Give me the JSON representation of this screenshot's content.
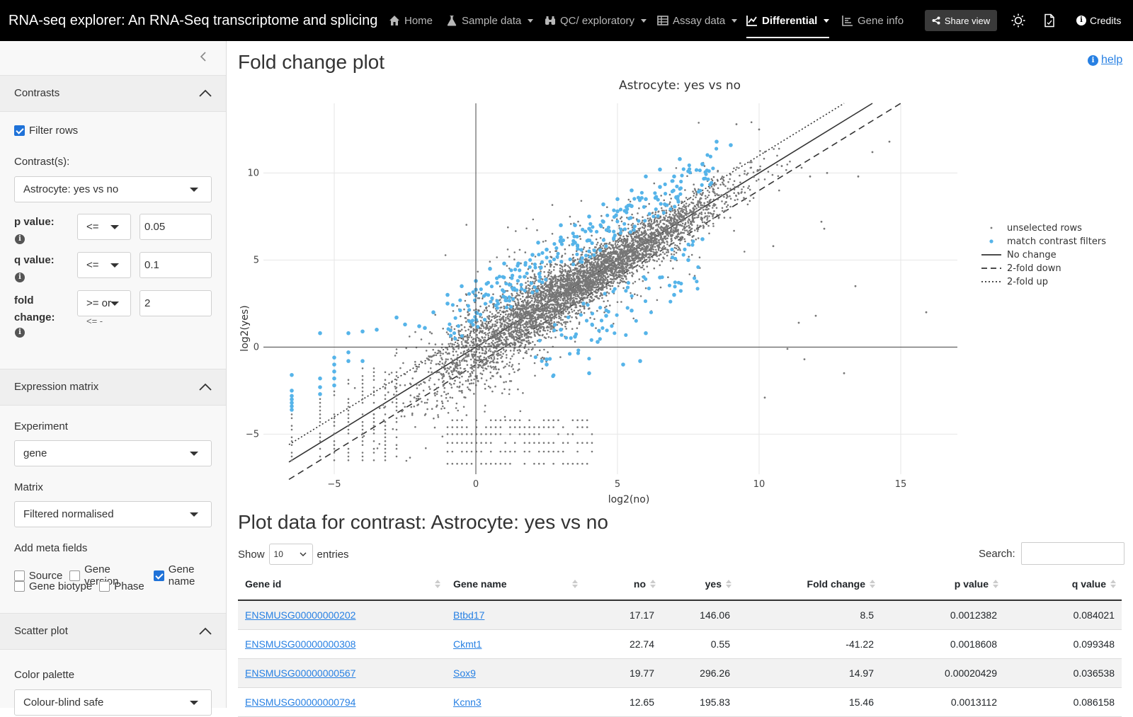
{
  "navbar": {
    "brand": "RNA-seq explorer: An RNA-Seq transcriptome and splicing d…",
    "items": [
      {
        "label": "Home",
        "icon": "home-icon",
        "dropdown": false,
        "active": false
      },
      {
        "label": "Sample data",
        "icon": "flask-icon",
        "dropdown": true,
        "active": false
      },
      {
        "label": "QC/ exploratory",
        "icon": "binoculars-icon",
        "dropdown": true,
        "active": false
      },
      {
        "label": "Assay data",
        "icon": "table-icon",
        "dropdown": true,
        "active": false
      },
      {
        "label": "Differential",
        "icon": "chart-line-icon",
        "dropdown": true,
        "active": true
      },
      {
        "label": "Gene info",
        "icon": "bar-list-icon",
        "dropdown": false,
        "active": false
      }
    ],
    "share_label": "Share view",
    "credits_label": "Credits"
  },
  "sidebar": {
    "contrasts": {
      "title": "Contrasts",
      "filter_rows_label": "Filter rows",
      "filter_rows_checked": true,
      "contrasts_label": "Contrast(s):",
      "contrast_value": "Astrocyte: yes vs no",
      "p_value": {
        "label": "p value:",
        "op": "<=",
        "value": "0.05"
      },
      "q_value": {
        "label": "q value:",
        "op": "<=",
        "value": "0.1"
      },
      "fold_change": {
        "label_line1": "fold",
        "label_line2": "change:",
        "op": ">= or",
        "op_extra": "<= -",
        "value": "2"
      }
    },
    "expression": {
      "title": "Expression matrix",
      "experiment_label": "Experiment",
      "experiment_value": "gene",
      "matrix_label": "Matrix",
      "matrix_value": "Filtered normalised",
      "meta_label": "Add meta fields",
      "meta_fields": [
        {
          "label": "Source",
          "checked": false
        },
        {
          "label": "Gene version",
          "checked": false
        },
        {
          "label": "Gene name",
          "checked": true
        },
        {
          "label": "Gene biotype",
          "checked": false
        },
        {
          "label": "Phase",
          "checked": false
        }
      ]
    },
    "scatter": {
      "title": "Scatter plot",
      "palette_label": "Color palette",
      "palette_value": "Colour-blind safe"
    }
  },
  "main": {
    "title": "Fold change plot",
    "help_label": "help",
    "table_title": "Plot data for contrast: Astrocyte: yes vs no",
    "show_label": "Show",
    "entries_value": "10",
    "entries_label": "entries",
    "search_label": "Search:"
  },
  "chart_data": {
    "type": "scatter",
    "title": "Astrocyte: yes vs no",
    "xlabel": "log2(no)",
    "ylabel": "log2(yes)",
    "xlim": [
      -7.5,
      17
    ],
    "ylim": [
      -7.3,
      14
    ],
    "x_ticks": [
      "−5",
      "0",
      "5",
      "10",
      "15"
    ],
    "x_tick_values": [
      -5,
      0,
      5,
      10,
      15
    ],
    "y_ticks": [
      "−5",
      "0",
      "5",
      "10"
    ],
    "y_tick_values": [
      -5,
      0,
      5,
      10
    ],
    "grid": true,
    "legend_position": "right",
    "legend": [
      {
        "label": "unselected rows",
        "kind": "point",
        "color": "#777777"
      },
      {
        "label": "match contrast filters",
        "kind": "point",
        "color": "#56b4e9"
      },
      {
        "label": "No change",
        "kind": "solid-line",
        "color": "#333333"
      },
      {
        "label": "2-fold down",
        "kind": "dashed-line",
        "color": "#333333"
      },
      {
        "label": "2-fold up",
        "kind": "dotted-line",
        "color": "#333333"
      }
    ],
    "reference_lines": [
      {
        "name": "No change",
        "slope": 1,
        "intercept": 0
      },
      {
        "name": "2-fold down",
        "slope": 1,
        "intercept": -1
      },
      {
        "name": "2-fold up",
        "slope": 1,
        "intercept": 1
      }
    ],
    "series_colors": {
      "unselected": "#777777",
      "selected": "#56b4e9"
    },
    "selected_points": [
      [
        -6.5,
        -2.5
      ],
      [
        -6.5,
        -2.8
      ],
      [
        -6.5,
        -3.0
      ],
      [
        -6.5,
        -3.2
      ],
      [
        -6.5,
        -3.4
      ],
      [
        -6.5,
        -3.6
      ],
      [
        -6.5,
        -1.6
      ],
      [
        -5.5,
        -1.8
      ],
      [
        -5.5,
        -2.3
      ],
      [
        -5.5,
        -2.7
      ],
      [
        -5.5,
        0.8
      ],
      [
        -5,
        -0.6
      ],
      [
        -5,
        -1.0
      ],
      [
        -5,
        -1.4
      ],
      [
        -5,
        -1.8
      ],
      [
        -5,
        -2.2
      ],
      [
        -4.5,
        0.8
      ],
      [
        -4.5,
        -0.3
      ],
      [
        -4.5,
        -0.8
      ],
      [
        -4,
        -0.8
      ],
      [
        -4,
        0.9
      ],
      [
        -3.5,
        1.0
      ],
      [
        -2.8,
        1.7
      ],
      [
        -2.5,
        1.3
      ],
      [
        -2,
        1.2
      ],
      [
        -1.5,
        2.0
      ],
      [
        -1.8,
        1.1
      ],
      [
        -1,
        2.5
      ],
      [
        -1,
        3.0
      ],
      [
        -0.5,
        3.5
      ],
      [
        0,
        3.3
      ],
      [
        0,
        3.8
      ],
      [
        0.5,
        4.5
      ],
      [
        1,
        4.8
      ],
      [
        1.5,
        4.8
      ],
      [
        2,
        5.3
      ],
      [
        2.2,
        6.0
      ],
      [
        2.5,
        5.6
      ],
      [
        3,
        6.3
      ],
      [
        3,
        7.0
      ],
      [
        3.5,
        7.0
      ],
      [
        3.5,
        6.0
      ],
      [
        4,
        6.8
      ],
      [
        4,
        7.5
      ],
      [
        4.5,
        7.2
      ],
      [
        4.5,
        8.2
      ],
      [
        5,
        7.8
      ],
      [
        5,
        8.5
      ],
      [
        5.5,
        8.1
      ],
      [
        5.5,
        9.0
      ],
      [
        6,
        8.5
      ],
      [
        6,
        9.8
      ],
      [
        6.5,
        9.2
      ],
      [
        6.5,
        10.2
      ],
      [
        7,
        9.8
      ],
      [
        7.2,
        10.8
      ],
      [
        7.5,
        10.1
      ],
      [
        8,
        10.5
      ],
      [
        8.5,
        11.8
      ],
      [
        9,
        11.6
      ],
      [
        3,
        1.0
      ],
      [
        3.5,
        0.6
      ],
      [
        4.3,
        0.3
      ],
      [
        5.2,
        -1.0
      ],
      [
        2.5,
        -1.0
      ],
      [
        5.8,
        -0.8
      ],
      [
        4,
        -1.5
      ],
      [
        6,
        0.8
      ],
      [
        7,
        3.0
      ],
      [
        6.5,
        4.0
      ],
      [
        7.5,
        5.0
      ],
      [
        8,
        6.2
      ],
      [
        4.6,
        1.8
      ],
      [
        3.8,
        2.5
      ],
      [
        5.5,
        2.1
      ],
      [
        2.5,
        -0.7
      ]
    ],
    "outlier_points": [
      [
        10,
        12.5
      ],
      [
        9.2,
        12.8
      ],
      [
        10.8,
        10.4
      ],
      [
        11.5,
        10.3
      ],
      [
        11.8,
        9.8
      ],
      [
        12.4,
        10.0
      ],
      [
        12.2,
        7.2
      ],
      [
        12.3,
        6.8
      ],
      [
        13.4,
        3.5
      ],
      [
        15.9,
        2.0
      ],
      [
        13.5,
        9.8
      ],
      [
        14.0,
        11.2
      ],
      [
        14.6,
        11.8
      ],
      [
        11.0,
        -0.1
      ],
      [
        11.6,
        -0.7
      ],
      [
        13.0,
        -1.5
      ],
      [
        10.2,
        -2.9
      ],
      [
        12.0,
        1.8
      ],
      [
        11.4,
        1.4
      ],
      [
        10.5,
        5.8
      ]
    ]
  },
  "table": {
    "columns": [
      "Gene id",
      "Gene name",
      "no",
      "yes",
      "Fold change",
      "p value",
      "q value"
    ],
    "rows": [
      {
        "gene_id": "ENSMUSG00000000202",
        "gene_name": "Btbd17",
        "no": "17.17",
        "yes": "146.06",
        "fold_change": "8.5",
        "p_value": "0.0012382",
        "q_value": "0.084021"
      },
      {
        "gene_id": "ENSMUSG00000000308",
        "gene_name": "Ckmt1",
        "no": "22.74",
        "yes": "0.55",
        "fold_change": "-41.22",
        "p_value": "0.0018608",
        "q_value": "0.099348"
      },
      {
        "gene_id": "ENSMUSG00000000567",
        "gene_name": "Sox9",
        "no": "19.77",
        "yes": "296.26",
        "fold_change": "14.97",
        "p_value": "0.00020429",
        "q_value": "0.036538"
      },
      {
        "gene_id": "ENSMUSG00000000794",
        "gene_name": "Kcnn3",
        "no": "12.65",
        "yes": "195.83",
        "fold_change": "15.46",
        "p_value": "0.0013112",
        "q_value": "0.086158"
      }
    ]
  }
}
